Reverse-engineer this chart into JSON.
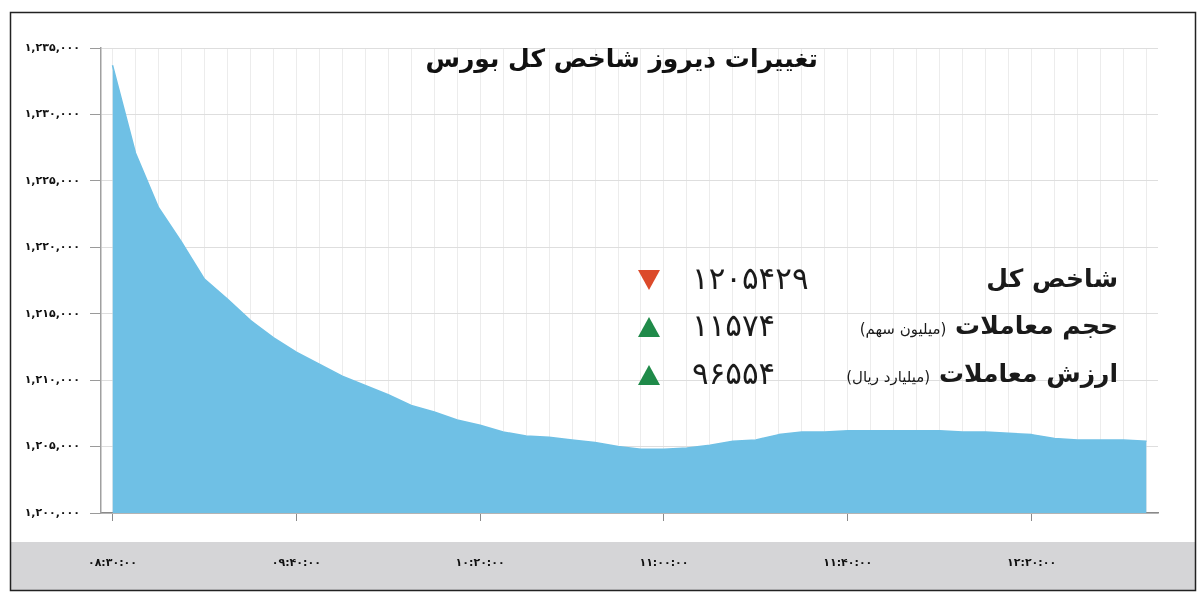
{
  "chart_data": {
    "type": "area",
    "title": "تغییرات دیروز شاخص کل بورس",
    "categories": [
      "۰۸:۳۰:۰۰",
      null,
      null,
      null,
      null,
      null,
      null,
      null,
      "۰۹:۴۰:۰۰",
      null,
      null,
      null,
      null,
      null,
      null,
      null,
      "۱۰:۲۰:۰۰",
      null,
      null,
      null,
      null,
      null,
      null,
      null,
      "۱۱:۰۰:۰۰",
      null,
      null,
      null,
      null,
      null,
      null,
      null,
      "۱۱:۴۰:۰۰",
      null,
      null,
      null,
      null,
      null,
      null,
      null,
      "۱۲:۲۰:۰۰",
      null,
      null,
      null,
      null,
      null
    ],
    "values": [
      1233700,
      1227100,
      1223000,
      1220400,
      1217600,
      1216100,
      1214500,
      1213200,
      1212100,
      1211200,
      1210300,
      1209600,
      1208900,
      1208100,
      1207600,
      1207000,
      1206600,
      1206100,
      1205800,
      1205700,
      1205500,
      1205300,
      1205000,
      1204800,
      1204800,
      1204900,
      1205100,
      1205400,
      1205500,
      1205900,
      1206100,
      1206100,
      1206200,
      1206200,
      1206200,
      1206200,
      1206200,
      1206100,
      1206100,
      1206000,
      1205900,
      1205600,
      1205500,
      1205500,
      1205500,
      1205400
    ],
    "color": "#6fc0e5",
    "ylim": [
      1200000,
      1235000
    ],
    "yticks": [
      {
        "value": 1200000,
        "label": "۱,۲۰۰,۰۰۰"
      },
      {
        "value": 1205000,
        "label": "۱,۲۰۵,۰۰۰"
      },
      {
        "value": 1210000,
        "label": "۱,۲۱۰,۰۰۰"
      },
      {
        "value": 1215000,
        "label": "۱,۲۱۵,۰۰۰"
      },
      {
        "value": 1220000,
        "label": "۱,۲۲۰,۰۰۰"
      },
      {
        "value": 1225000,
        "label": "۱,۲۲۵,۰۰۰"
      },
      {
        "value": 1230000,
        "label": "۱,۲۳۰,۰۰۰"
      },
      {
        "value": 1235000,
        "label": "۱,۲۳۵,۰۰۰"
      }
    ],
    "grid": true,
    "annotations": [
      "شاخص کل",
      "۱۲۰۵۴۲۹",
      "حجم معاملات (میلیون سهم)",
      "۱۱۵۷۴",
      "ارزش معاملات (میلیارد ریال)",
      "۹۶۵۵۴"
    ]
  }
}
